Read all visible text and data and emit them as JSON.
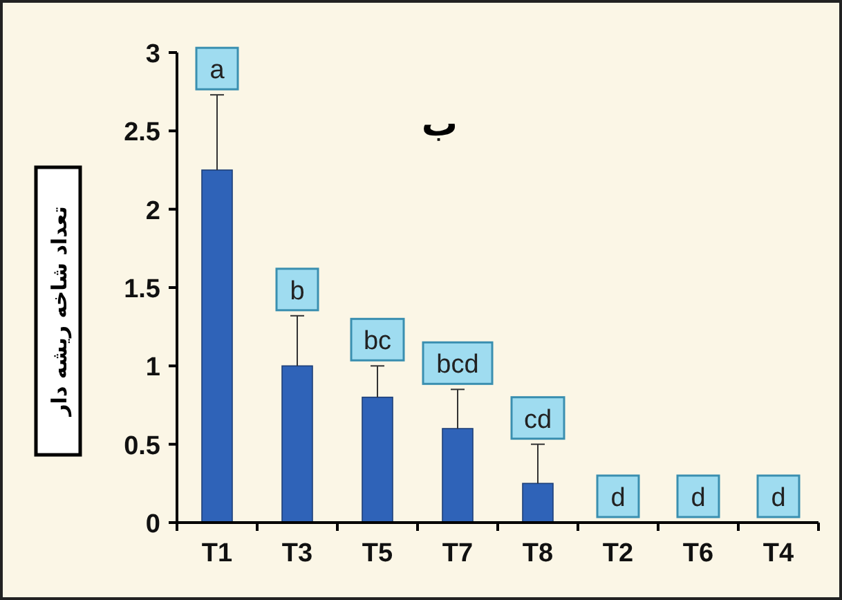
{
  "chart_data": {
    "type": "bar",
    "title": "ب",
    "ylabel": "تعداد شاخه ریشه دار",
    "categories": [
      "T1",
      "T3",
      "T5",
      "T7",
      "T8",
      "T2",
      "T6",
      "T4"
    ],
    "values": [
      2.25,
      1.0,
      0.8,
      0.6,
      0.25,
      0,
      0,
      0
    ],
    "errors": [
      [
        2.25,
        2.73
      ],
      [
        1.0,
        1.32
      ],
      [
        0.8,
        1.0
      ],
      [
        0.6,
        0.85
      ],
      [
        0.25,
        0.5
      ],
      null,
      null,
      null
    ],
    "color": "#2f63b8",
    "ylim": [
      0,
      3
    ],
    "yticks": [
      0,
      0.5,
      1,
      1.5,
      2,
      2.5,
      3
    ],
    "annotations": [
      {
        "text": "a",
        "x": "T1",
        "y": 2.73
      },
      {
        "text": "b",
        "x": "T3",
        "y": 1.32
      },
      {
        "text": "bc",
        "x": "T5",
        "y": 1.0
      },
      {
        "text": "bcd",
        "x": "T7",
        "y": 0.85
      },
      {
        "text": "cd",
        "x": "T8",
        "y": 0.5
      },
      {
        "text": "d",
        "x": "T2",
        "y": 0
      },
      {
        "text": "d",
        "x": "T6",
        "y": 0
      },
      {
        "text": "d",
        "x": "T4",
        "y": 0
      }
    ]
  }
}
